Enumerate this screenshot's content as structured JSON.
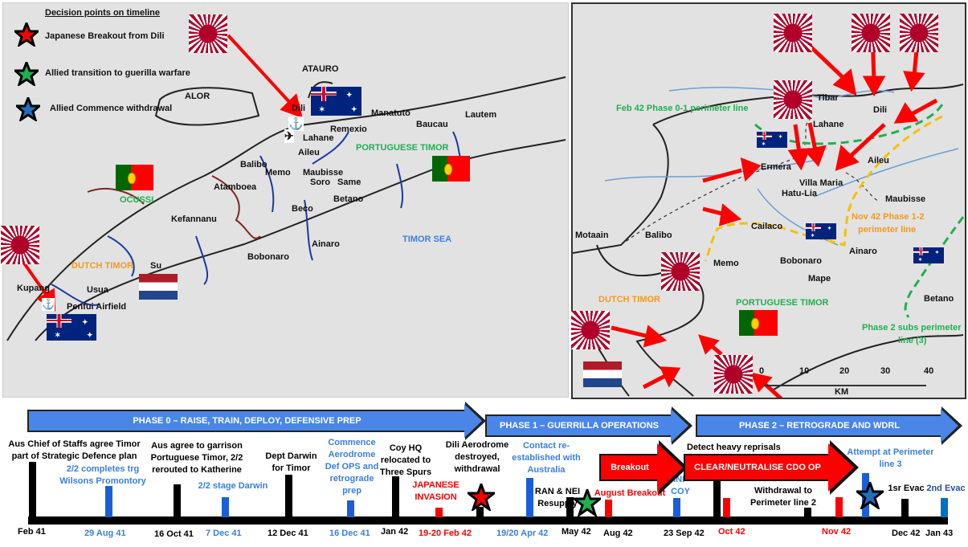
{
  "legend": {
    "title": "Decision points on timeline",
    "items": [
      {
        "label": "Japanese Breakout from Dili",
        "color": "#ff0000"
      },
      {
        "label": "Allied transition to guerilla warfare",
        "color": "#1fb050"
      },
      {
        "label": "Allied Commence withdrawal",
        "color": "#1f6fc0"
      }
    ]
  },
  "left_map": {
    "labels": {
      "atauro": "ATAURO",
      "alor": "ALOR",
      "dili": "Dili",
      "manatuto": "Manatuto",
      "baucau": "Baucau",
      "lautem": "Lautem",
      "remexio": "Remexio",
      "lahane": "Lahane",
      "aileu": "Aileu",
      "portuguese_timor": "PORTUGUESE TIMOR",
      "balibo": "Balibo",
      "memo": "Memo",
      "maubisse": "Maubisse",
      "soro": "Soro",
      "same": "Same",
      "atamboea": "Atamboea",
      "ocussi": "OCUSSI",
      "betano": "Betano",
      "beco": "Beco",
      "kefannanu": "Kefannanu",
      "ainaro": "Ainaro",
      "timor_sea": "TIMOR SEA",
      "bobonaro": "Bobonaro",
      "dutch_timor": "DUTCH TIMOR",
      "su": "Su",
      "kupang": "Kupang",
      "usua": "Usua",
      "penfui": "Penfui Airfield"
    }
  },
  "right_map": {
    "labels": {
      "feb42": "Feb 42 Phase 0-1  perimeter line",
      "tibar": "Tibar",
      "dili": "Dili",
      "lahane": "Lahane",
      "aileu": "Aileu",
      "ermera": "Ermera",
      "villa_maria": "Villa Maria",
      "hatu_lia": "Hatu-Lia",
      "maubisse": "Maubisse",
      "nov42_1": "Nov 42 Phase 1-2",
      "nov42_2": "perimeter line",
      "cailaco": "Cailaco",
      "motaain": "Motaain",
      "balibo": "Balibo",
      "memo": "Memo",
      "bobonaro": "Bobonaro",
      "ainaro": "Ainaro",
      "mape": "Mape",
      "betano": "Betano",
      "dutch_timor": "DUTCH TIMOR",
      "portuguese_timor": "PORTUGUESE TIMOR",
      "phase2_1": "Phase 2 subs perimeter",
      "phase2_2": "line (3)"
    },
    "scale": {
      "ticks": [
        "0",
        "10",
        "20",
        "30",
        "40"
      ],
      "unit": "KM"
    }
  },
  "phases": [
    "PHASE 0 – RAISE, TRAIN, DEPLOY, DEFENSIVE PREP",
    "PHASE 1 – GUERRILLA OPERATIONS",
    "PHASE 2 – RETROGRADE AND WDRL"
  ],
  "ops": {
    "breakout": "Breakout",
    "clear": "CLEAR/NEUTRALISE CDO OP"
  },
  "events": {
    "e1": "Aus Chief of Staffs agree Timor part of Strategic Defence plan",
    "e2": "2/2 completes trg Wilsons Promontory",
    "e3": "Aus agree to garrison Portuguese Timor, 2/2 rerouted to Katherine",
    "e4": "2/2 stage Darwin",
    "e5": "Dept Darwin for Timor",
    "e6": "Commence Aerodrome Def OPS and retrograde prep",
    "e7": "Coy HQ relocated to Three Spurs",
    "e8": "JAPANESE INVASION",
    "e9": "Dili Aerodrome destroyed, withdrawal",
    "e10": "Contact re-established with Australia",
    "e11": "RAN & NEI Resupply",
    "e12": "August Breakout",
    "e13": "INF COY",
    "e14": "Detect heavy reprisals",
    "e15": "Withdrawal to Perimeter line 2",
    "e16": "Attempt at Perimeter line 3",
    "e17": "1sr Evac",
    "e18": "2nd Evac"
  },
  "dates": [
    "Feb 41",
    "29 Aug 41",
    "16 Oct 41",
    "7 Dec 41",
    "12 Dec 41",
    "16 Dec 41",
    "Jan 42",
    "19-20 Feb 42",
    "19/20 Apr 42",
    "May 42",
    "Aug 42",
    "23 Sep 42",
    "Oct 42",
    "Nov 42",
    "Dec 42",
    "Jan 43"
  ]
}
